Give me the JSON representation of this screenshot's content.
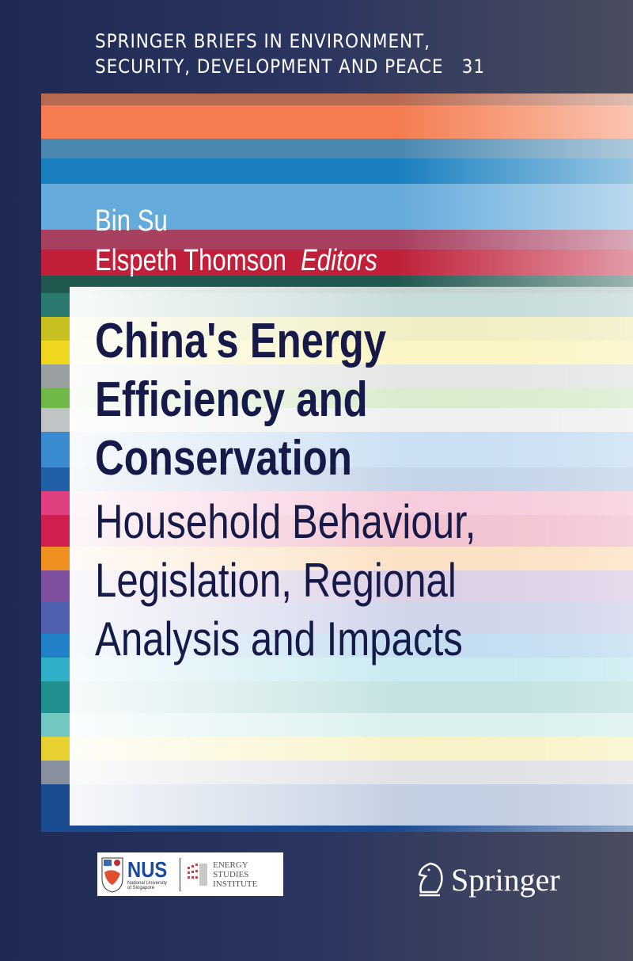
{
  "series": {
    "line1": "SPRINGER BRIEFS IN ENVIRONMENT,",
    "line2": "SECURITY, DEVELOPMENT AND PEACE",
    "number": "31"
  },
  "editors": {
    "first": "Bin Su",
    "second": "Elspeth Thomson",
    "role": "Editors"
  },
  "title": {
    "line1": "China's Energy",
    "line2": "Efficiency and",
    "line3": "Conservation"
  },
  "subtitle": {
    "line1": "Household Behaviour,",
    "line2": "Legislation, Regional",
    "line3": "Analysis and Impacts"
  },
  "logos": {
    "nus": "NUS",
    "nus_sub1": "National University",
    "nus_sub2": "of Singapore",
    "esi1": "ENERGY",
    "esi2": "STUDIES",
    "esi3": "INSTITUTE",
    "publisher": "Springer"
  },
  "colors": {
    "title": "#151a48",
    "background": "#1e2a55"
  },
  "stripes": [
    [
      "#b86a50",
      0,
      15
    ],
    [
      "#f47c50",
      15,
      57
    ],
    [
      "#4a88b0",
      57,
      82
    ],
    [
      "#1a80c0",
      82,
      114
    ],
    [
      "#64aada",
      114,
      172
    ],
    [
      "#a84060",
      172,
      197
    ],
    [
      "#c0203a",
      197,
      230
    ],
    [
      "#205850",
      230,
      252
    ],
    [
      "#2a7a70",
      252,
      282
    ],
    [
      "#c8c020",
      282,
      312
    ],
    [
      "#f0d820",
      312,
      342
    ],
    [
      "#9aa0a0",
      342,
      372
    ],
    [
      "#70b848",
      372,
      397
    ],
    [
      "#c0c4c4",
      397,
      427
    ],
    [
      "#3a8ad0",
      427,
      472
    ],
    [
      "#2060a8",
      472,
      502
    ],
    [
      "#e04080",
      502,
      532
    ],
    [
      "#d02050",
      532,
      572
    ],
    [
      "#f09020",
      572,
      602
    ],
    [
      "#8050a0",
      602,
      642
    ],
    [
      "#5060b0",
      642,
      682
    ],
    [
      "#2080c8",
      682,
      712
    ],
    [
      "#30b0c8",
      712,
      742
    ],
    [
      "#209090",
      742,
      782
    ],
    [
      "#70c8c0",
      782,
      812
    ],
    [
      "#e8d030",
      812,
      842
    ],
    [
      "#8890a0",
      842,
      872
    ],
    [
      "#1a4a90",
      872,
      932
    ]
  ]
}
